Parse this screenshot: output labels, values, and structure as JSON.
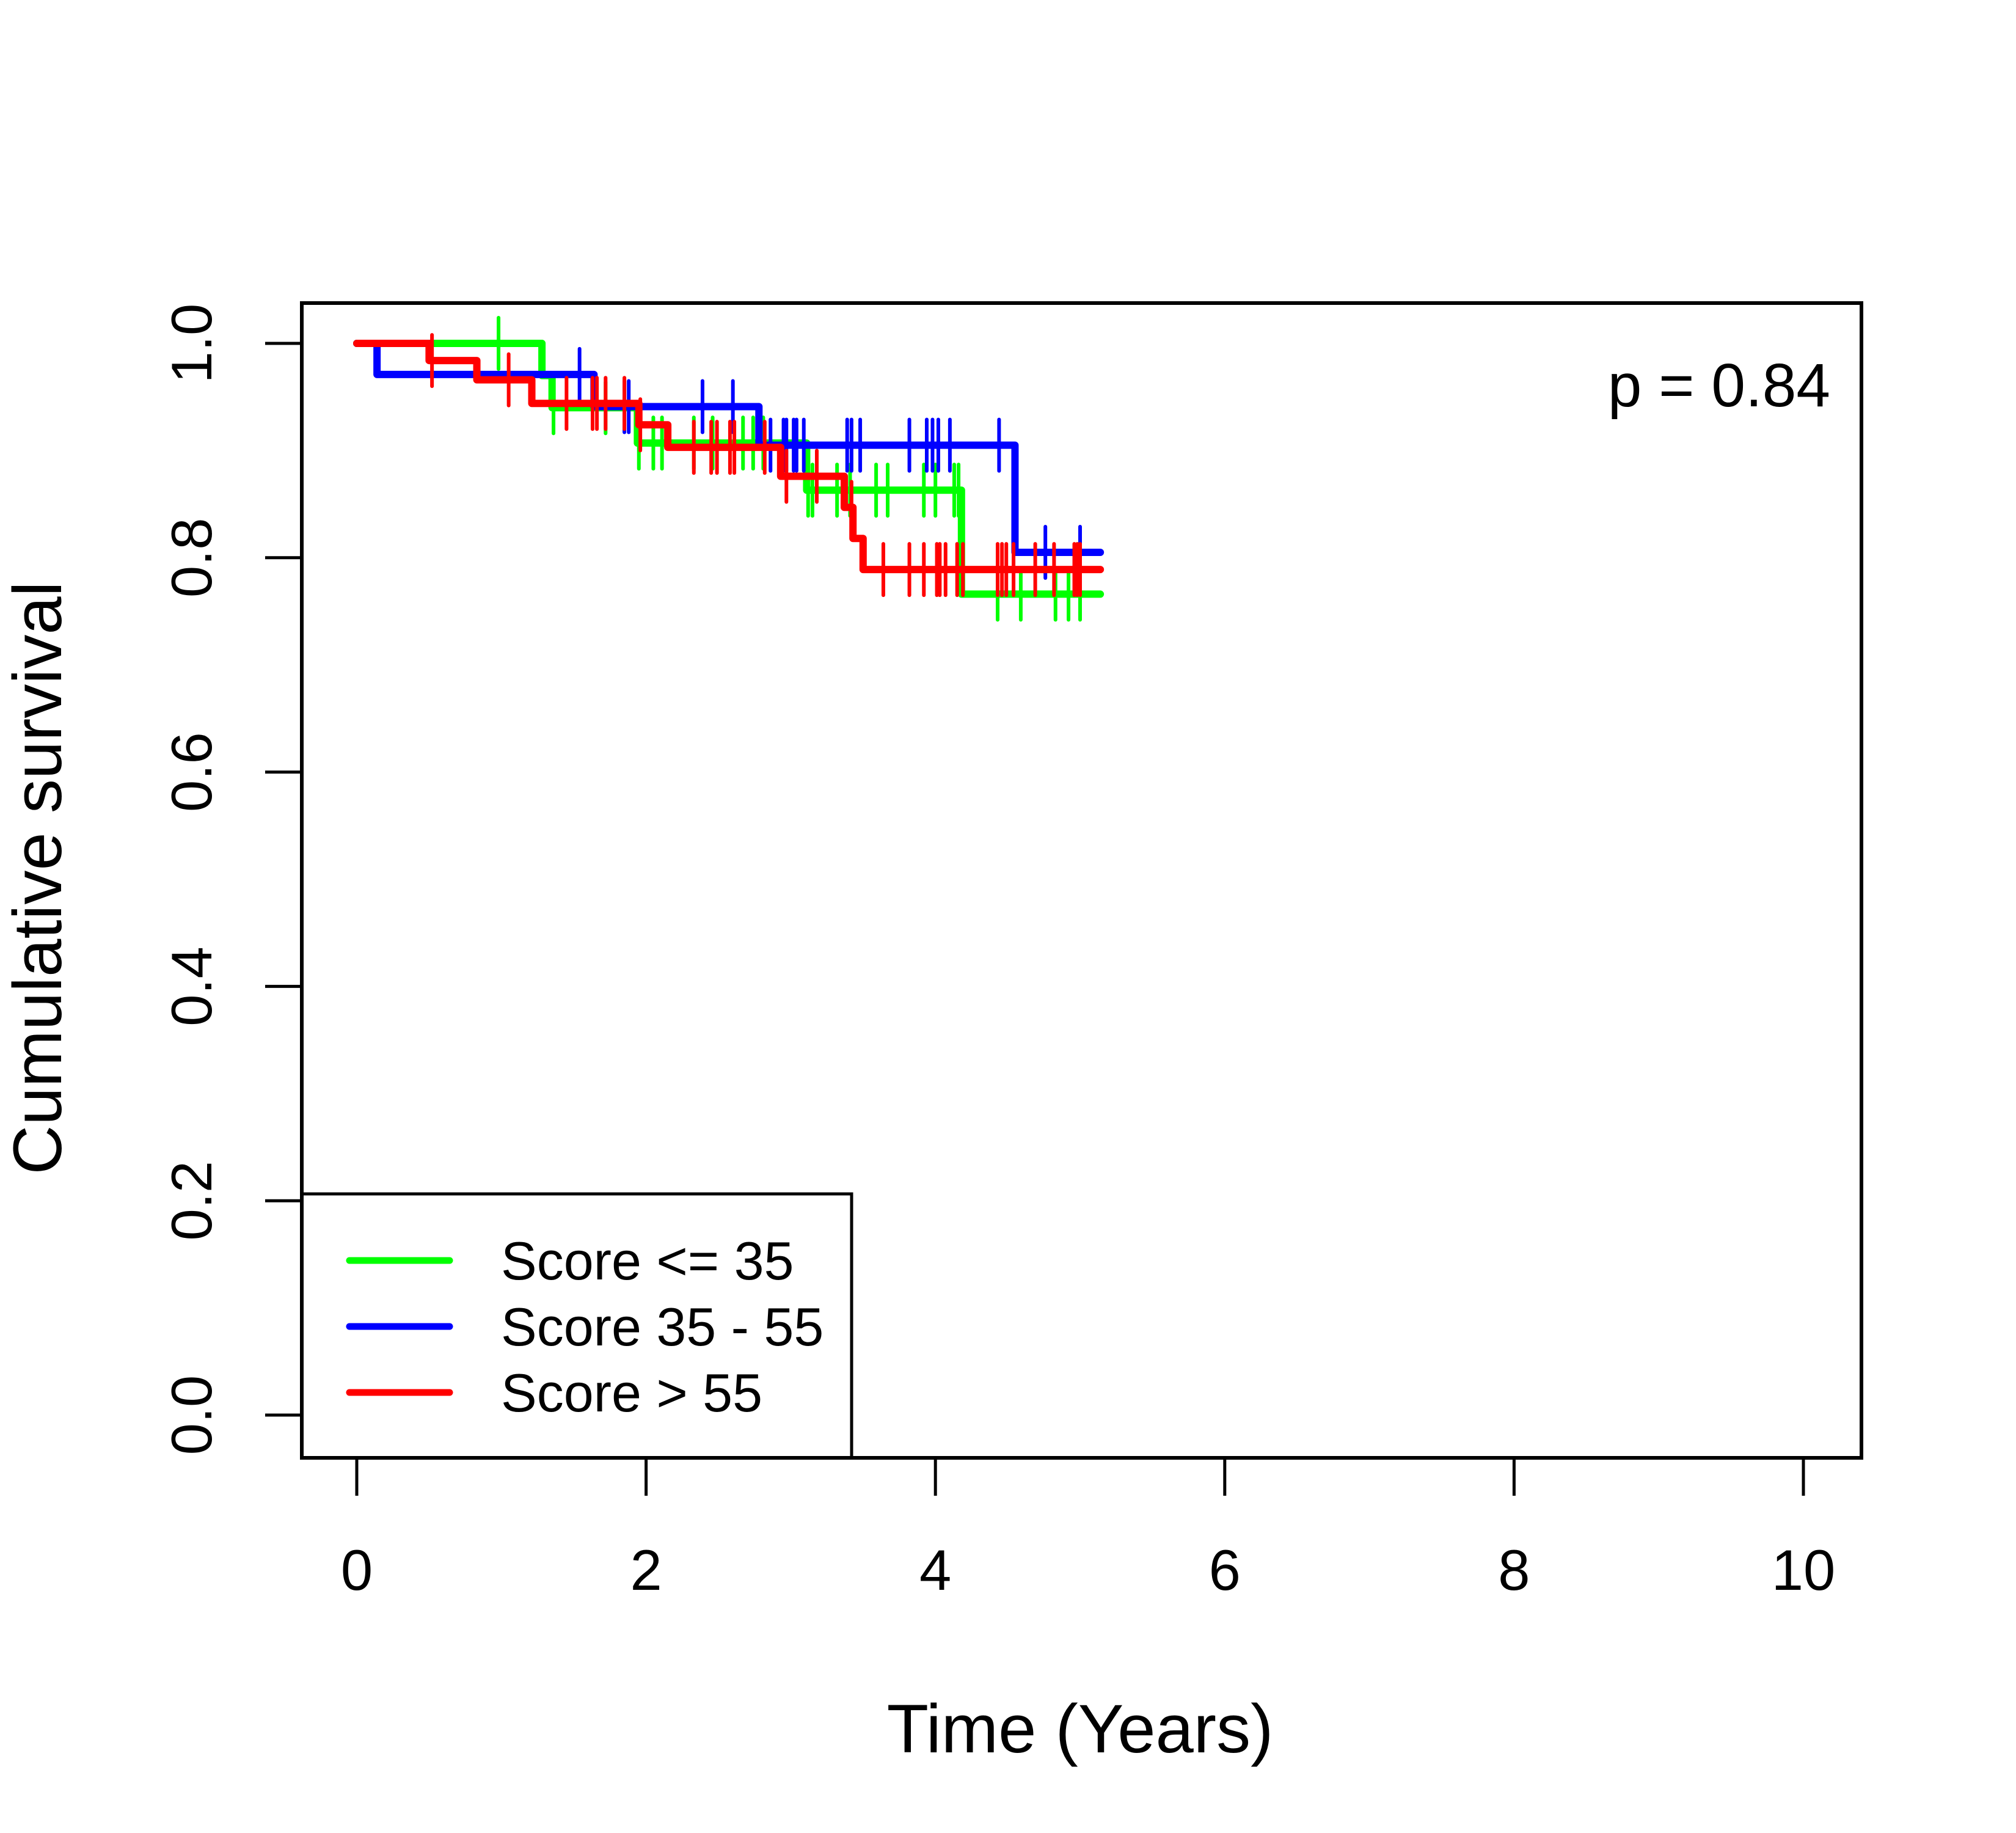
{
  "chart_data": {
    "type": "line",
    "subtype": "kaplan-meier step",
    "title": "",
    "xlabel": "Time (Years)",
    "ylabel": "Cumulative survival",
    "xlim": [
      0,
      10
    ],
    "ylim": [
      0,
      1
    ],
    "x_ticks": [
      0,
      2,
      4,
      6,
      8,
      10
    ],
    "x_tick_labels": [
      "0",
      "2",
      "4",
      "6",
      "8",
      "10"
    ],
    "y_ticks": [
      0.0,
      0.2,
      0.4,
      0.6,
      0.8,
      1.0
    ],
    "y_tick_labels": [
      "0.0",
      "0.2",
      "0.4",
      "0.6",
      "0.8",
      "1.0"
    ],
    "grid": false,
    "legend_position": "bottom-left",
    "annotation": "p = 0.84",
    "series": [
      {
        "name": "Score <= 35",
        "color": "#00ff00",
        "steps": [
          [
            0,
            1.0
          ],
          [
            1.28,
            0.97
          ],
          [
            1.35,
            0.94
          ],
          [
            1.94,
            0.907
          ],
          [
            3.11,
            0.863
          ],
          [
            4.18,
            0.766
          ]
        ],
        "end_time": 5.14,
        "censored": [
          0.98,
          1.36,
          1.72,
          1.95,
          2.05,
          2.11,
          2.33,
          2.46,
          2.67,
          2.74,
          2.81,
          3.12,
          3.15,
          3.32,
          3.41,
          3.59,
          3.67,
          3.92,
          4.0,
          4.13,
          4.16,
          4.43,
          4.59,
          4.83,
          4.92,
          5.0
        ]
      },
      {
        "name": "Score 35 - 55",
        "color": "#0000ff",
        "steps": [
          [
            0,
            1.0
          ],
          [
            0.14,
            0.971
          ],
          [
            1.64,
            0.941
          ],
          [
            2.78,
            0.905
          ],
          [
            4.55,
            0.805
          ]
        ],
        "end_time": 5.14,
        "censored": [
          1.54,
          1.85,
          1.88,
          2.39,
          2.6,
          2.86,
          2.95,
          2.97,
          3.02,
          3.04,
          3.09,
          3.39,
          3.42,
          3.48,
          3.82,
          3.94,
          3.98,
          4.02,
          4.1,
          4.44,
          4.76,
          5.0
        ]
      },
      {
        "name": "Score > 55",
        "color": "#ff0000",
        "steps": [
          [
            0,
            1.0
          ],
          [
            0.5,
            0.984
          ],
          [
            0.83,
            0.966
          ],
          [
            1.21,
            0.944
          ],
          [
            1.95,
            0.924
          ],
          [
            2.15,
            0.903
          ],
          [
            2.93,
            0.876
          ],
          [
            3.37,
            0.847
          ],
          [
            3.43,
            0.818
          ],
          [
            3.5,
            0.789
          ]
        ],
        "end_time": 5.14,
        "censored": [
          0.52,
          1.05,
          1.45,
          1.63,
          1.66,
          1.72,
          1.85,
          1.96,
          2.33,
          2.45,
          2.49,
          2.58,
          2.61,
          2.82,
          2.97,
          3.18,
          3.42,
          3.64,
          3.82,
          3.92,
          4.01,
          4.03,
          4.07,
          4.15,
          4.19,
          4.43,
          4.46,
          4.49,
          4.54,
          4.69,
          4.82,
          4.96,
          4.98,
          5.0
        ]
      }
    ]
  }
}
